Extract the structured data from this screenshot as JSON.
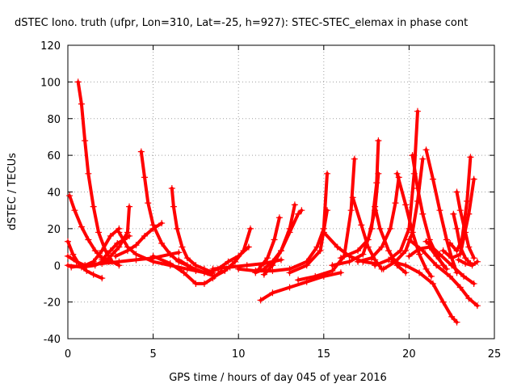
{
  "chart_data": {
    "type": "scatter",
    "title": "dSTEC Iono. truth (ufpr, Lon=310, Lat=-25, h=927): STEC-STEC_elemax in phase cont",
    "xlabel": "GPS time / hours of day 045 of year 2016",
    "ylabel": "dSTEC  / TECUs",
    "xlim": [
      0,
      25
    ],
    "ylim": [
      -40,
      120
    ],
    "xticks": [
      0,
      5,
      10,
      15,
      20,
      25
    ],
    "yticks": [
      -40,
      -20,
      0,
      20,
      40,
      60,
      80,
      100,
      120
    ],
    "grid": true,
    "marker": "plus",
    "color": "#ff0000",
    "series": [
      {
        "points": [
          [
            0.6,
            100
          ],
          [
            0.8,
            88
          ],
          [
            1.0,
            68
          ],
          [
            1.2,
            50
          ],
          [
            1.5,
            32
          ],
          [
            1.8,
            18
          ],
          [
            2.2,
            8
          ],
          [
            2.6,
            2
          ],
          [
            3.0,
            0
          ]
        ]
      },
      {
        "points": [
          [
            0.1,
            38
          ],
          [
            0.4,
            30
          ],
          [
            0.8,
            21
          ],
          [
            1.2,
            14
          ],
          [
            1.6,
            8
          ],
          [
            2.0,
            4
          ],
          [
            2.4,
            2
          ]
        ]
      },
      {
        "points": [
          [
            0.0,
            13
          ],
          [
            0.3,
            6
          ],
          [
            0.7,
            0
          ],
          [
            1.1,
            -3
          ],
          [
            1.5,
            -5
          ],
          [
            2.0,
            -7
          ]
        ]
      },
      {
        "points": [
          [
            0.0,
            5
          ],
          [
            0.5,
            2
          ],
          [
            1.0,
            0
          ],
          [
            1.5,
            2
          ],
          [
            2.0,
            8
          ],
          [
            2.5,
            16
          ],
          [
            3.0,
            20
          ]
        ]
      },
      {
        "points": [
          [
            0.0,
            0
          ],
          [
            0.8,
            -1
          ],
          [
            1.6,
            0
          ],
          [
            2.4,
            4
          ],
          [
            3.0,
            10
          ],
          [
            3.5,
            18
          ],
          [
            3.6,
            32
          ]
        ]
      },
      {
        "points": [
          [
            0.2,
            -1
          ],
          [
            1.0,
            0
          ],
          [
            2.0,
            1
          ],
          [
            3.0,
            2
          ],
          [
            4.0,
            3
          ],
          [
            5.0,
            4
          ],
          [
            6.0,
            6
          ],
          [
            6.5,
            7
          ]
        ]
      },
      {
        "points": [
          [
            2.0,
            3
          ],
          [
            2.5,
            8
          ],
          [
            2.9,
            12
          ],
          [
            3.3,
            14
          ],
          [
            3.6,
            16
          ]
        ]
      },
      {
        "points": [
          [
            2.8,
            5
          ],
          [
            3.5,
            8
          ],
          [
            4.0,
            11
          ],
          [
            4.5,
            16
          ],
          [
            5.0,
            20
          ],
          [
            5.5,
            23
          ]
        ]
      },
      {
        "points": [
          [
            4.3,
            62
          ],
          [
            4.5,
            48
          ],
          [
            4.7,
            34
          ],
          [
            5.0,
            22
          ],
          [
            5.5,
            12
          ],
          [
            6.0,
            6
          ],
          [
            6.5,
            2
          ],
          [
            7.0,
            0
          ]
        ]
      },
      {
        "points": [
          [
            3.0,
            18
          ],
          [
            3.5,
            10
          ],
          [
            4.0,
            6
          ],
          [
            5.0,
            2
          ],
          [
            6.0,
            0
          ],
          [
            7.0,
            -2
          ],
          [
            8.0,
            -4
          ]
        ]
      },
      {
        "points": [
          [
            6.1,
            42
          ],
          [
            6.2,
            32
          ],
          [
            6.4,
            20
          ],
          [
            6.7,
            10
          ],
          [
            7.0,
            4
          ],
          [
            7.5,
            0
          ],
          [
            8.0,
            -2
          ],
          [
            8.5,
            -4
          ]
        ]
      },
      {
        "points": [
          [
            5.0,
            5
          ],
          [
            6.0,
            1
          ],
          [
            6.8,
            -4
          ],
          [
            7.5,
            -10
          ],
          [
            8.0,
            -10
          ],
          [
            8.5,
            -7
          ],
          [
            9.0,
            -3
          ]
        ]
      },
      {
        "points": [
          [
            6.5,
            3
          ],
          [
            7.2,
            -1
          ],
          [
            8.0,
            -4
          ],
          [
            8.6,
            -6
          ],
          [
            9.2,
            -3
          ],
          [
            9.8,
            2
          ],
          [
            10.3,
            8
          ],
          [
            10.7,
            20
          ]
        ]
      },
      {
        "points": [
          [
            7.5,
            -3
          ],
          [
            8.2,
            -4
          ],
          [
            8.8,
            -2
          ],
          [
            9.4,
            2
          ],
          [
            10.0,
            5
          ],
          [
            10.6,
            10
          ]
        ]
      },
      {
        "points": [
          [
            8.5,
            -2
          ],
          [
            9.5,
            -1
          ],
          [
            10.5,
            0
          ],
          [
            11.5,
            1
          ],
          [
            12.5,
            3
          ]
        ]
      },
      {
        "points": [
          [
            11.0,
            -4
          ],
          [
            11.5,
            -2
          ],
          [
            12.0,
            2
          ],
          [
            12.5,
            8
          ],
          [
            13.0,
            18
          ],
          [
            13.5,
            28
          ],
          [
            13.7,
            30
          ]
        ]
      },
      {
        "points": [
          [
            11.2,
            -2
          ],
          [
            11.7,
            4
          ],
          [
            12.1,
            14
          ],
          [
            12.4,
            26
          ]
        ]
      },
      {
        "points": [
          [
            11.5,
            -5
          ],
          [
            12.0,
            0
          ],
          [
            12.5,
            8
          ],
          [
            13.0,
            20
          ],
          [
            13.3,
            33
          ]
        ]
      },
      {
        "points": [
          [
            11.3,
            -19
          ],
          [
            12.0,
            -15
          ],
          [
            13.0,
            -12
          ],
          [
            14.0,
            -9
          ],
          [
            15.0,
            -6
          ],
          [
            16.0,
            -4
          ]
        ]
      },
      {
        "points": [
          [
            10.0,
            -2
          ],
          [
            11.0,
            -3
          ],
          [
            12.0,
            -3
          ],
          [
            13.0,
            -2
          ],
          [
            14.0,
            2
          ],
          [
            14.6,
            10
          ],
          [
            15.0,
            20
          ],
          [
            15.2,
            50
          ]
        ]
      },
      {
        "points": [
          [
            13.0,
            -4
          ],
          [
            14.0,
            0
          ],
          [
            14.8,
            8
          ],
          [
            15.2,
            30
          ]
        ]
      },
      {
        "points": [
          [
            13.5,
            -8
          ],
          [
            14.5,
            -6
          ],
          [
            15.5,
            -3
          ],
          [
            16.2,
            5
          ],
          [
            16.6,
            30
          ],
          [
            16.8,
            58
          ]
        ]
      },
      {
        "points": [
          [
            15.0,
            18
          ],
          [
            15.8,
            10
          ],
          [
            16.5,
            5
          ],
          [
            17.3,
            2
          ],
          [
            18.0,
            1
          ]
        ]
      },
      {
        "points": [
          [
            16.7,
            37
          ],
          [
            17.2,
            22
          ],
          [
            17.6,
            10
          ],
          [
            18.0,
            3
          ],
          [
            18.4,
            -2
          ]
        ]
      },
      {
        "points": [
          [
            15.5,
            0
          ],
          [
            16.5,
            2
          ],
          [
            17.3,
            6
          ],
          [
            17.8,
            20
          ],
          [
            18.1,
            45
          ],
          [
            18.2,
            68
          ]
        ]
      },
      {
        "points": [
          [
            16.0,
            4
          ],
          [
            17.0,
            8
          ],
          [
            17.6,
            14
          ],
          [
            18.0,
            30
          ],
          [
            18.2,
            50
          ]
        ]
      },
      {
        "points": [
          [
            18.0,
            32
          ],
          [
            18.3,
            20
          ],
          [
            18.8,
            8
          ],
          [
            19.3,
            0
          ],
          [
            19.8,
            -4
          ]
        ]
      },
      {
        "points": [
          [
            17.0,
            2
          ],
          [
            17.8,
            4
          ],
          [
            18.4,
            10
          ],
          [
            18.9,
            20
          ],
          [
            19.2,
            34
          ],
          [
            19.4,
            48
          ]
        ]
      },
      {
        "points": [
          [
            18.0,
            0
          ],
          [
            18.8,
            3
          ],
          [
            19.5,
            8
          ],
          [
            20.0,
            20
          ],
          [
            20.3,
            50
          ],
          [
            20.5,
            84
          ]
        ]
      },
      {
        "points": [
          [
            18.5,
            -2
          ],
          [
            19.2,
            2
          ],
          [
            19.8,
            8
          ],
          [
            20.2,
            18
          ],
          [
            20.5,
            35
          ],
          [
            20.8,
            58
          ]
        ]
      },
      {
        "points": [
          [
            19.3,
            50
          ],
          [
            19.8,
            33
          ],
          [
            20.2,
            18
          ],
          [
            20.6,
            6
          ],
          [
            21.0,
            -2
          ],
          [
            21.3,
            -6
          ]
        ]
      },
      {
        "points": [
          [
            20.2,
            60
          ],
          [
            20.5,
            42
          ],
          [
            20.8,
            28
          ],
          [
            21.2,
            14
          ],
          [
            21.6,
            6
          ],
          [
            22.0,
            0
          ]
        ]
      },
      {
        "points": [
          [
            21.0,
            63
          ],
          [
            21.4,
            47
          ],
          [
            21.8,
            30
          ],
          [
            22.2,
            14
          ],
          [
            22.5,
            4
          ],
          [
            22.8,
            -4
          ]
        ]
      },
      {
        "points": [
          [
            19.0,
            2
          ],
          [
            19.8,
            0
          ],
          [
            20.6,
            -4
          ],
          [
            21.4,
            -10
          ],
          [
            22.0,
            -20
          ],
          [
            22.5,
            -28
          ],
          [
            22.8,
            -31
          ]
        ]
      },
      {
        "points": [
          [
            20.0,
            14
          ],
          [
            20.8,
            8
          ],
          [
            21.6,
            0
          ],
          [
            22.4,
            -6
          ],
          [
            23.0,
            -12
          ],
          [
            23.5,
            -18
          ],
          [
            24.0,
            -22
          ]
        ]
      },
      {
        "points": [
          [
            21.0,
            13
          ],
          [
            21.8,
            6
          ],
          [
            22.5,
            0
          ],
          [
            23.2,
            -6
          ],
          [
            23.8,
            -10
          ]
        ]
      },
      {
        "points": [
          [
            20.0,
            5
          ],
          [
            20.6,
            9
          ],
          [
            21.2,
            10
          ],
          [
            21.6,
            5
          ],
          [
            22.2,
            -2
          ]
        ]
      },
      {
        "points": [
          [
            22.6,
            28
          ],
          [
            22.8,
            20
          ],
          [
            23.0,
            10
          ],
          [
            23.3,
            4
          ],
          [
            23.6,
            1
          ]
        ]
      },
      {
        "points": [
          [
            22.8,
            40
          ],
          [
            23.0,
            30
          ],
          [
            23.3,
            18
          ],
          [
            23.5,
            10
          ],
          [
            23.8,
            4
          ]
        ]
      },
      {
        "points": [
          [
            22.0,
            8
          ],
          [
            22.5,
            4
          ],
          [
            23.0,
            6
          ],
          [
            23.5,
            28
          ],
          [
            23.8,
            47
          ]
        ]
      },
      {
        "points": [
          [
            22.4,
            12
          ],
          [
            22.8,
            8
          ],
          [
            23.1,
            14
          ],
          [
            23.4,
            35
          ],
          [
            23.6,
            59
          ]
        ]
      },
      {
        "points": [
          [
            22.9,
            3
          ],
          [
            23.3,
            1
          ],
          [
            23.7,
            0
          ],
          [
            24.0,
            2
          ]
        ]
      }
    ]
  }
}
